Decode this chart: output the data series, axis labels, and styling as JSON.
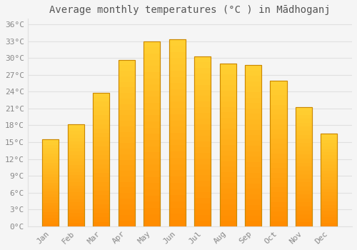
{
  "title": "Average monthly temperatures (°C ) in Mādhoganj",
  "months": [
    "Jan",
    "Feb",
    "Mar",
    "Apr",
    "May",
    "Jun",
    "Jul",
    "Aug",
    "Sep",
    "Oct",
    "Nov",
    "Dec"
  ],
  "temperatures": [
    15.5,
    18.2,
    23.8,
    29.7,
    33.0,
    33.3,
    30.3,
    29.0,
    28.7,
    26.0,
    21.3,
    16.5
  ],
  "bar_color_top": "#FFBF00",
  "bar_color_bottom": "#FF8C00",
  "bar_edge_color": "#CC8800",
  "background_color": "#F5F5F5",
  "grid_color": "#E0E0E0",
  "text_color": "#888888",
  "title_color": "#555555",
  "ytick_labels": [
    "0°C",
    "3°C",
    "6°C",
    "9°C",
    "12°C",
    "15°C",
    "18°C",
    "21°C",
    "24°C",
    "27°C",
    "30°C",
    "33°C",
    "36°C"
  ],
  "ytick_values": [
    0,
    3,
    6,
    9,
    12,
    15,
    18,
    21,
    24,
    27,
    30,
    33,
    36
  ],
  "ylim": [
    0,
    37
  ],
  "title_fontsize": 10,
  "tick_fontsize": 8,
  "font_family": "monospace"
}
